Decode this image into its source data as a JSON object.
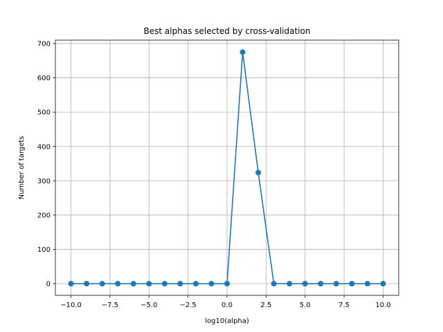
{
  "chart_data": {
    "type": "line",
    "title": "Best alphas selected by cross-validation",
    "xlabel": "log10(alpha)",
    "ylabel": "Number of targets",
    "xlim": [
      -11,
      11
    ],
    "ylim": [
      -34,
      710
    ],
    "grid": true,
    "xticks": [
      -10,
      -7.5,
      -5,
      -2.5,
      0,
      2.5,
      5,
      7.5,
      10
    ],
    "xtick_labels": [
      "−10.0",
      "−7.5",
      "−5.0",
      "−2.5",
      "0.0",
      "2.5",
      "5.0",
      "7.5",
      "10.0"
    ],
    "yticks": [
      0,
      100,
      200,
      300,
      400,
      500,
      600,
      700
    ],
    "ytick_labels": [
      "0",
      "100",
      "200",
      "300",
      "400",
      "500",
      "600",
      "700"
    ],
    "color": "#1f77b4",
    "series": [
      {
        "x": [
          -10,
          -9,
          -8,
          -7,
          -6,
          -5,
          -4,
          -3,
          -2,
          -1,
          0,
          1,
          2,
          3,
          4,
          5,
          6,
          7,
          8,
          9,
          10
        ],
        "y": [
          0,
          0,
          0,
          0,
          0,
          0,
          0,
          0,
          0,
          0,
          0,
          675,
          324,
          0,
          0,
          0,
          0,
          0,
          0,
          0,
          0
        ]
      }
    ]
  }
}
